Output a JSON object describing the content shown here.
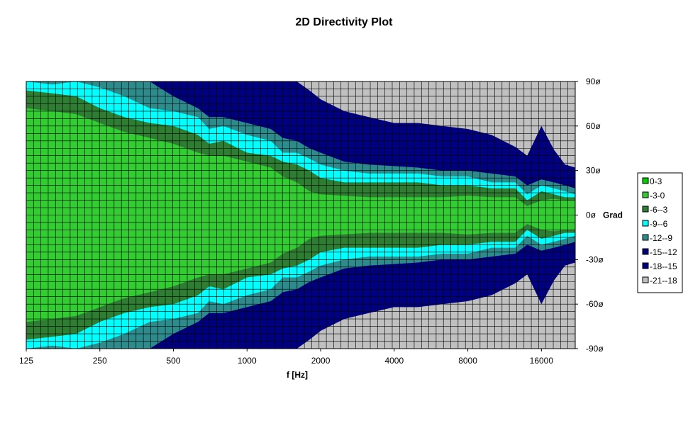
{
  "chart_data": {
    "type": "area",
    "title": "2D Directivity Plot",
    "xlabel": "f [Hz]",
    "ylabel": "Grad",
    "x_scale": "log",
    "xlim": [
      125,
      22000
    ],
    "ylim": [
      -90,
      90
    ],
    "x_ticks": [
      125,
      250,
      500,
      1000,
      2000,
      4000,
      8000,
      16000
    ],
    "x_tick_labels": [
      "125",
      "250",
      "500",
      "1000",
      "2000",
      "4000",
      "8000",
      "16000"
    ],
    "y_ticks": [
      90,
      60,
      30,
      0,
      -30,
      -60,
      -90
    ],
    "y_tick_labels": [
      "90ø",
      "60ø",
      "30ø",
      "0ø",
      "-30ø",
      "-60ø",
      "-90ø"
    ],
    "grid": true,
    "legend_position": "right",
    "levels": [
      {
        "name": "0-3",
        "color": "#00cc00"
      },
      {
        "name": "-3-0",
        "color": "#33cc33"
      },
      {
        "name": "-6--3",
        "color": "#2e7d32"
      },
      {
        "name": "-9--6",
        "color": "#00ffff"
      },
      {
        "name": "-12--9",
        "color": "#2e8b8b"
      },
      {
        "name": "-15--12",
        "color": "#00007a"
      },
      {
        "name": "-18--15",
        "color": "#000080"
      },
      {
        "name": "-21--18",
        "color": "#c0c0c0"
      }
    ],
    "band_frequencies": [
      125,
      160,
      200,
      250,
      315,
      400,
      500,
      630,
      700,
      800,
      1000,
      1250,
      1400,
      1600,
      1800,
      2000,
      2500,
      3150,
      4000,
      5000,
      6300,
      8000,
      10000,
      12500,
      14000,
      16000,
      18000,
      20000,
      22000
    ],
    "contours_deg": {
      "-3": [
        72,
        70,
        68,
        62,
        56,
        52,
        48,
        42,
        40,
        40,
        36,
        32,
        26,
        22,
        16,
        14,
        13,
        12,
        12,
        12,
        12,
        13,
        12,
        12,
        6,
        10,
        11,
        10,
        10
      ],
      "-6": [
        84,
        82,
        80,
        72,
        66,
        62,
        60,
        54,
        48,
        50,
        42,
        40,
        36,
        34,
        30,
        25,
        22,
        22,
        22,
        22,
        20,
        20,
        18,
        18,
        10,
        16,
        14,
        12,
        12
      ],
      "-9": [
        90,
        88,
        90,
        86,
        80,
        72,
        70,
        66,
        58,
        60,
        54,
        50,
        42,
        42,
        38,
        34,
        30,
        28,
        28,
        28,
        26,
        26,
        22,
        22,
        14,
        20,
        18,
        16,
        14
      ],
      "-12": [
        90,
        90,
        90,
        90,
        90,
        90,
        80,
        72,
        66,
        66,
        62,
        58,
        52,
        50,
        45,
        42,
        36,
        34,
        33,
        32,
        30,
        30,
        28,
        26,
        20,
        24,
        22,
        20,
        18
      ],
      "-15": [
        90,
        90,
        90,
        90,
        90,
        90,
        88,
        82,
        78,
        76,
        70,
        68,
        60,
        56,
        52,
        48,
        42,
        40,
        38,
        36,
        34,
        32,
        30,
        30,
        26,
        28,
        26,
        22,
        20
      ],
      "-18": [
        90,
        90,
        90,
        90,
        90,
        90,
        90,
        90,
        90,
        90,
        90,
        90,
        90,
        90,
        84,
        78,
        70,
        66,
        62,
        62,
        60,
        58,
        54,
        46,
        40,
        60,
        44,
        34,
        32
      ]
    }
  }
}
